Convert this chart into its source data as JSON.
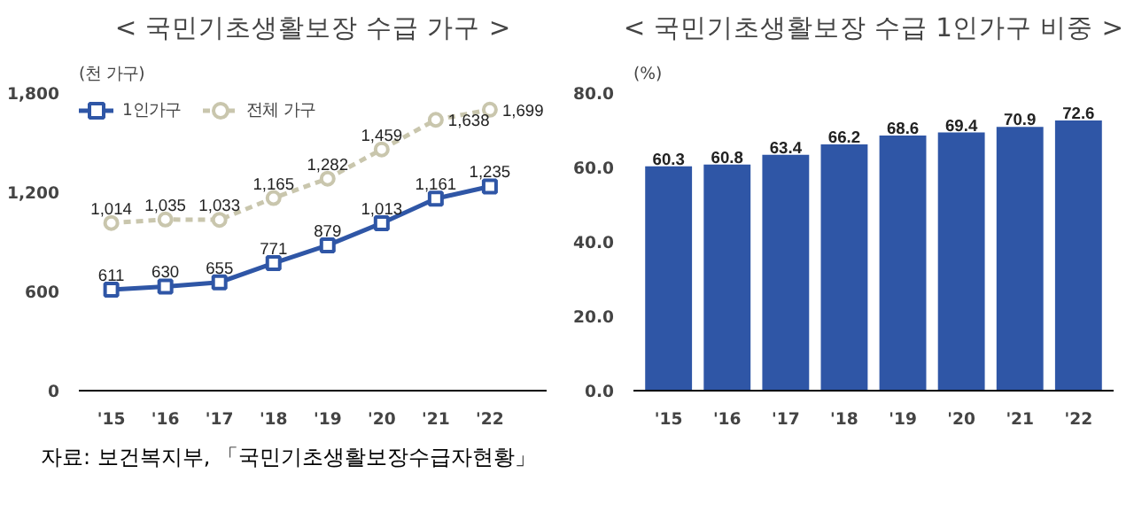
{
  "chart_data": [
    {
      "type": "line",
      "title": "< 국민기초생활보장 수급 가구 >",
      "ylabel": "(천 가구)",
      "categories": [
        "'15",
        "'16",
        "'17",
        "'18",
        "'19",
        "'20",
        "'21",
        "'22"
      ],
      "series": [
        {
          "name": "1인가구",
          "color": "#2f56a6",
          "marker": "square",
          "line_style": "solid",
          "values": [
            611,
            630,
            655,
            771,
            879,
            1013,
            1161,
            1235
          ],
          "value_labels": [
            "611",
            "630",
            "655",
            "771",
            "879",
            "1,013",
            "1,161",
            "1,235"
          ]
        },
        {
          "name": "전체 가구",
          "color": "#c9c6ad",
          "marker": "circle",
          "line_style": "dashed",
          "values": [
            1014,
            1035,
            1033,
            1165,
            1282,
            1459,
            1638,
            1699
          ],
          "value_labels": [
            "1,014",
            "1,035",
            "1,033",
            "1,165",
            "1,282",
            "1,459",
            "1,638",
            "1,699"
          ]
        }
      ],
      "ylim": [
        0,
        1800
      ],
      "yticks": [
        0,
        {
          "value": 600,
          "label": "600"
        },
        {
          "value": 1200,
          "label": "1,200"
        },
        {
          "value": 1800,
          "label": "1,800"
        }
      ],
      "legend": "top left",
      "grid": false,
      "annotations": [
        "자료: 보건복지부, 「국민기초생활보장수급자현황」"
      ]
    },
    {
      "type": "bar",
      "title": "< 국민기초생활보장 수급 1인가구 비중 >",
      "ylabel": "(%)",
      "categories": [
        "'15",
        "'16",
        "'17",
        "'18",
        "'19",
        "'20",
        "'21",
        "'22"
      ],
      "values": [
        60.3,
        60.8,
        63.4,
        66.2,
        68.6,
        69.4,
        70.9,
        72.6
      ],
      "color": "#2f56a6",
      "ylim": [
        0,
        80
      ],
      "yticks": [
        {
          "value": 0,
          "label": "0.0"
        },
        {
          "value": 20,
          "label": "20.0"
        },
        {
          "value": 40,
          "label": "40.0"
        },
        {
          "value": 60,
          "label": "60.0"
        },
        {
          "value": 80,
          "label": "80.0"
        }
      ],
      "data_labels": true,
      "grid": false
    }
  ]
}
